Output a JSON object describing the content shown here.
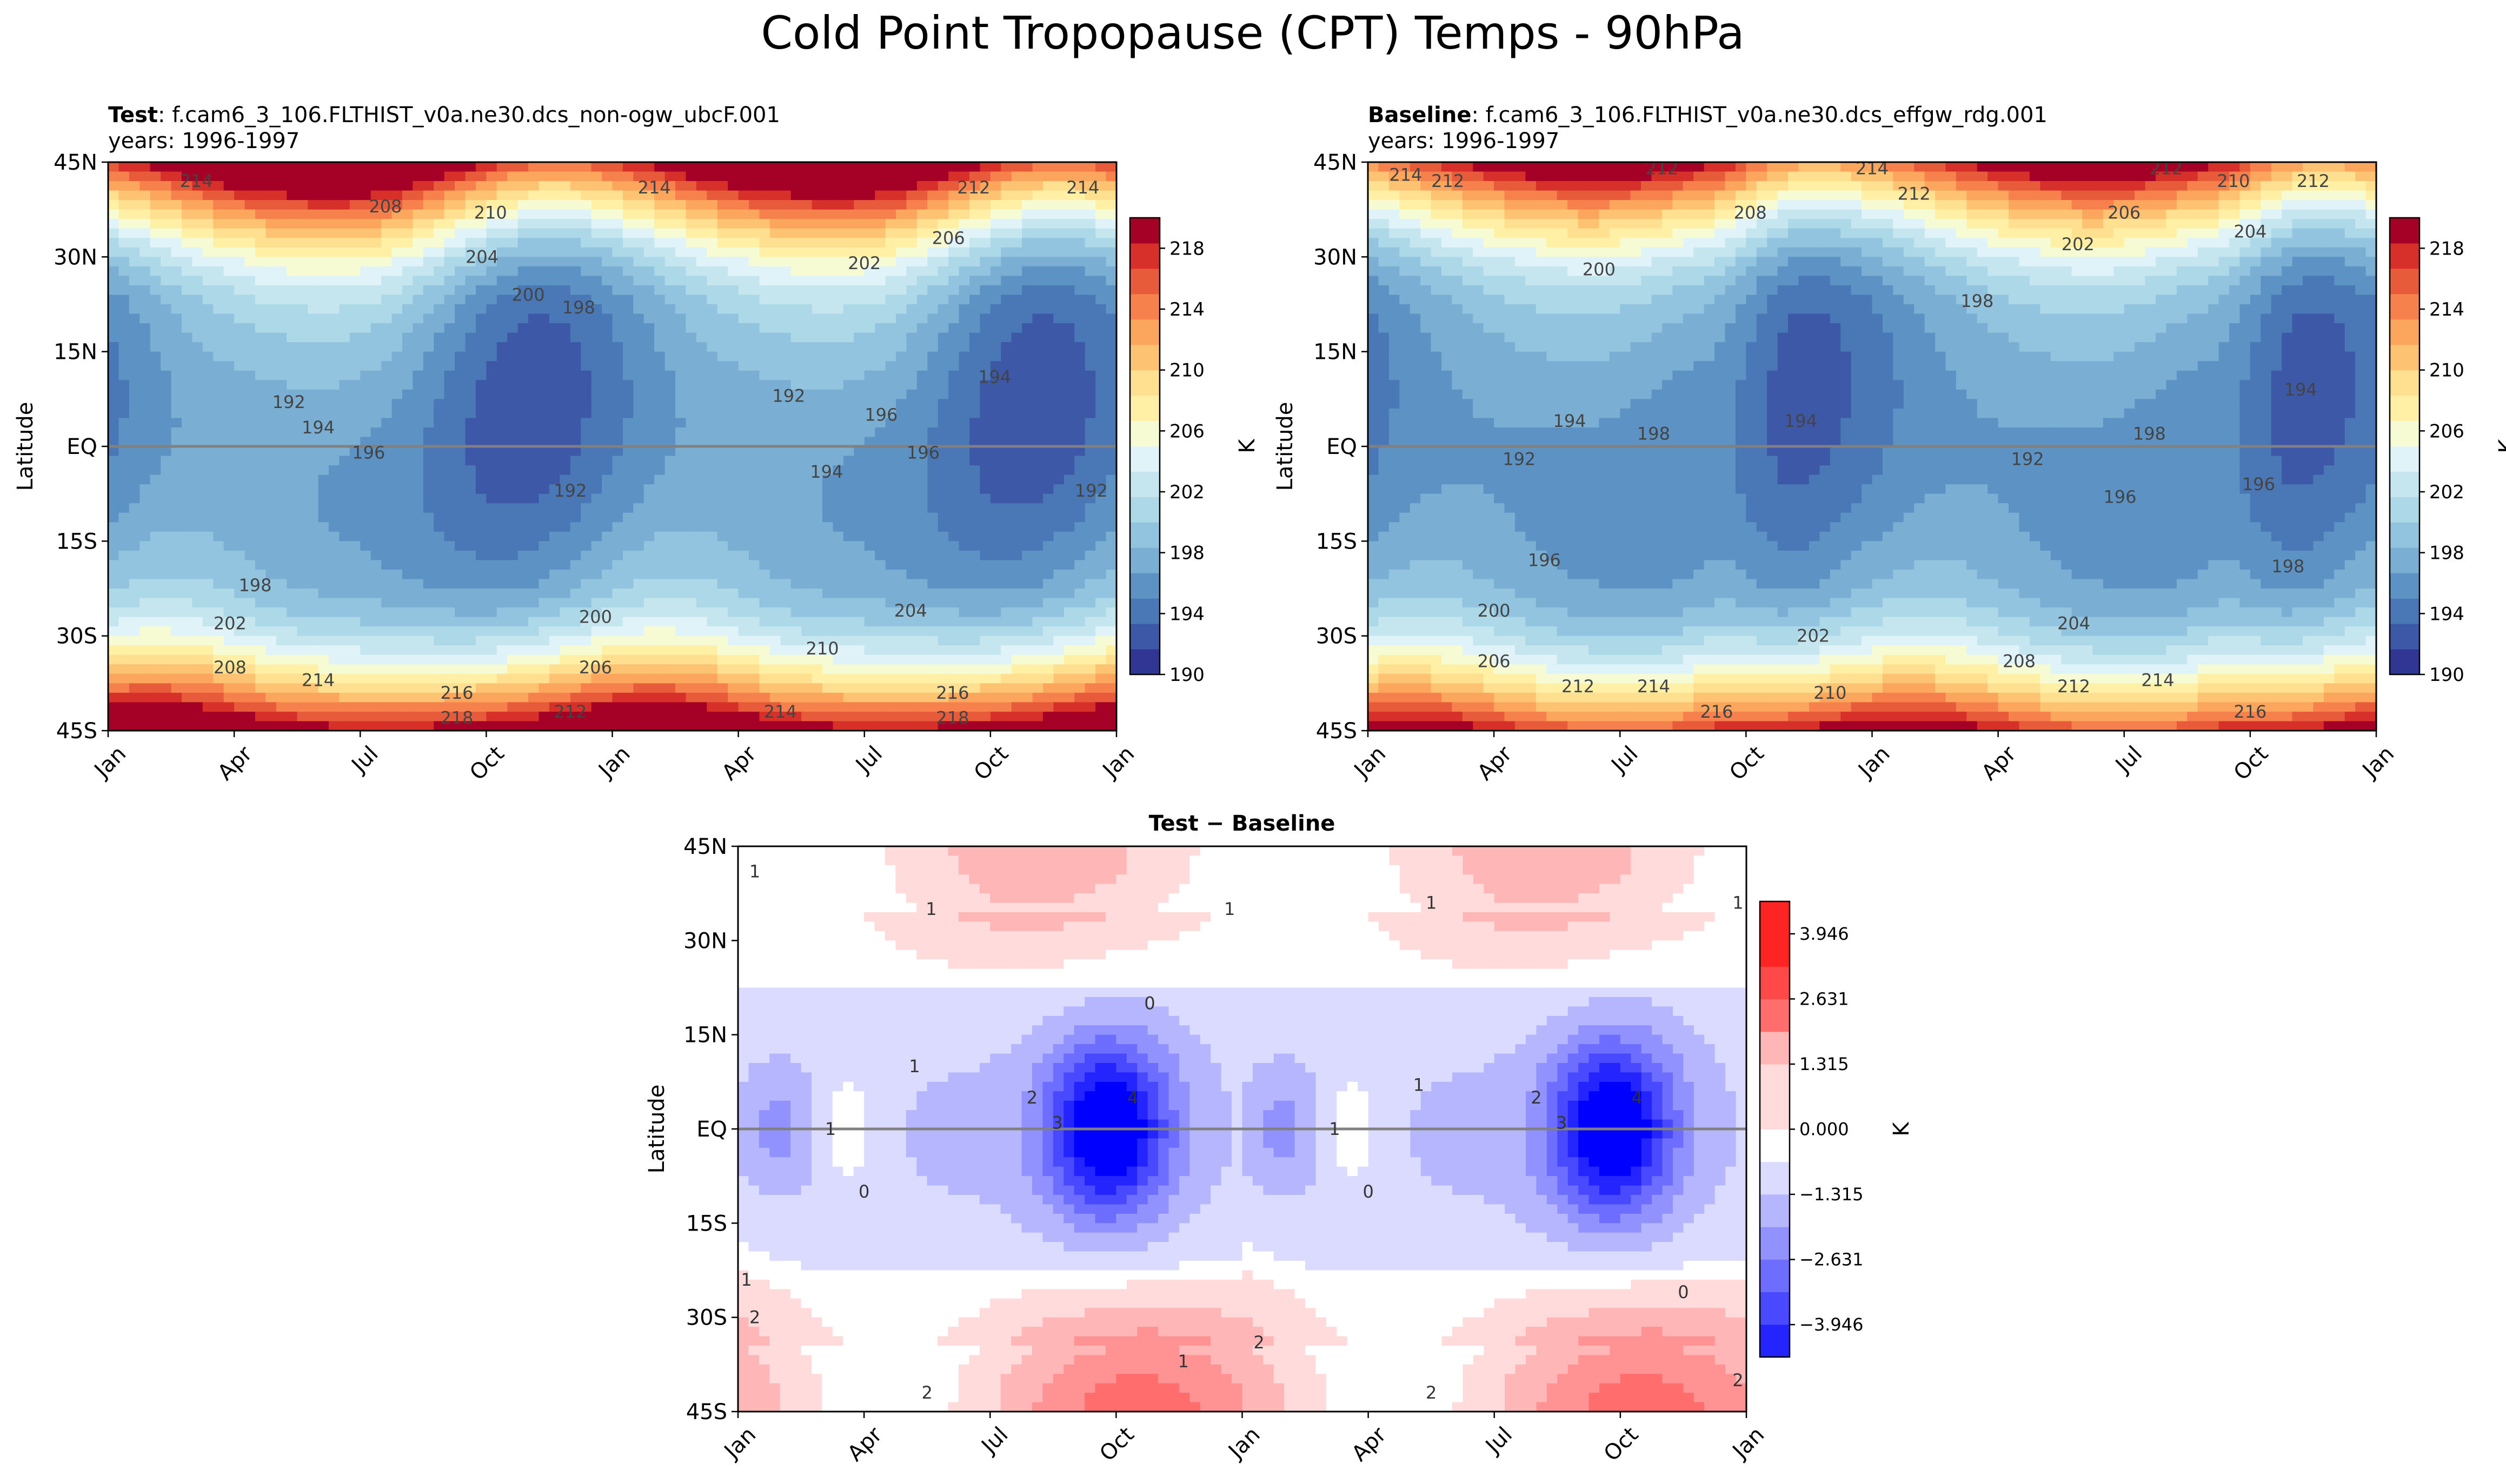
{
  "figure": {
    "title": "Cold Point Tropopause (CPT) Temps - 90hPa"
  },
  "chart_data": [
    {
      "id": "test",
      "type": "heatmap",
      "title_bold": "Test",
      "title_rest": ": f.cam6_3_106.FLTHIST_v0a.ne30.dcs_non-ogw_ubcF.001",
      "subtitle": "years: 1996-1997",
      "ylabel": "Latitude",
      "xlabel": "",
      "x_ticks": [
        "Jan",
        "Apr",
        "Jul",
        "Oct",
        "Jan",
        "Apr",
        "Jul",
        "Oct",
        "Jan"
      ],
      "y_ticks": [
        "45N",
        "30N",
        "15N",
        "EQ",
        "15S",
        "30S",
        "45S"
      ],
      "x_range_months": [
        0,
        24
      ],
      "y_range_lat": [
        -45,
        45
      ],
      "colorbar": {
        "label": "K",
        "ticks": [
          "190",
          "194",
          "198",
          "202",
          "206",
          "210",
          "214",
          "218"
        ],
        "levels": [
          190,
          192,
          194,
          196,
          198,
          200,
          202,
          204,
          206,
          208,
          210,
          212,
          214,
          216,
          218,
          220
        ],
        "colors": [
          "#313695",
          "#3c58a7",
          "#4a77b5",
          "#5d93c4",
          "#7aafd3",
          "#93c4df",
          "#acd8e8",
          "#c6e6ef",
          "#e0f3f8",
          "#f6fbd4",
          "#fff0a6",
          "#fee090",
          "#fdc372",
          "#fca55d",
          "#f6814c",
          "#e85b3a",
          "#d7302a",
          "#a50026"
        ],
        "vmin": 190,
        "vmax": 220
      },
      "contour_labels": [
        {
          "text": "214",
          "m": 2.1,
          "lat": 42
        },
        {
          "text": "214",
          "m": 13.0,
          "lat": 41
        },
        {
          "text": "212",
          "m": 20.6,
          "lat": 41
        },
        {
          "text": "214",
          "m": 23.2,
          "lat": 41
        },
        {
          "text": "208",
          "m": 6.6,
          "lat": 38
        },
        {
          "text": "210",
          "m": 9.1,
          "lat": 37
        },
        {
          "text": "206",
          "m": 20.0,
          "lat": 33
        },
        {
          "text": "204",
          "m": 8.9,
          "lat": 30
        },
        {
          "text": "202",
          "m": 18.0,
          "lat": 29
        },
        {
          "text": "200",
          "m": 10.0,
          "lat": 24
        },
        {
          "text": "198",
          "m": 11.2,
          "lat": 22
        },
        {
          "text": "192",
          "m": 4.3,
          "lat": 7
        },
        {
          "text": "194",
          "m": 5.0,
          "lat": 3
        },
        {
          "text": "196",
          "m": 6.2,
          "lat": -1
        },
        {
          "text": "192",
          "m": 16.2,
          "lat": 8
        },
        {
          "text": "196",
          "m": 18.4,
          "lat": 5
        },
        {
          "text": "194",
          "m": 21.1,
          "lat": 11
        },
        {
          "text": "196",
          "m": 19.4,
          "lat": -1
        },
        {
          "text": "194",
          "m": 17.1,
          "lat": -4
        },
        {
          "text": "192",
          "m": 11.0,
          "lat": -7
        },
        {
          "text": "192",
          "m": 23.4,
          "lat": -7
        },
        {
          "text": "198",
          "m": 3.5,
          "lat": -22
        },
        {
          "text": "202",
          "m": 2.9,
          "lat": -28
        },
        {
          "text": "200",
          "m": 11.6,
          "lat": -27
        },
        {
          "text": "204",
          "m": 19.1,
          "lat": -26
        },
        {
          "text": "208",
          "m": 2.9,
          "lat": -35
        },
        {
          "text": "206",
          "m": 11.6,
          "lat": -35
        },
        {
          "text": "210",
          "m": 17.0,
          "lat": -32
        },
        {
          "text": "214",
          "m": 5.0,
          "lat": -37
        },
        {
          "text": "216",
          "m": 8.3,
          "lat": -39
        },
        {
          "text": "212",
          "m": 11.0,
          "lat": -42
        },
        {
          "text": "214",
          "m": 16.0,
          "lat": -42
        },
        {
          "text": "216",
          "m": 20.1,
          "lat": -39
        },
        {
          "text": "218",
          "m": 8.3,
          "lat": -43
        },
        {
          "text": "218",
          "m": 20.1,
          "lat": -43
        }
      ]
    },
    {
      "id": "baseline",
      "type": "heatmap",
      "title_bold": "Baseline",
      "title_rest": ": f.cam6_3_106.FLTHIST_v0a.ne30.dcs_effgw_rdg.001",
      "subtitle": "years: 1996-1997",
      "ylabel": "Latitude",
      "xlabel": "",
      "x_ticks": [
        "Jan",
        "Apr",
        "Jul",
        "Oct",
        "Jan",
        "Apr",
        "Jul",
        "Oct",
        "Jan"
      ],
      "y_ticks": [
        "45N",
        "30N",
        "15N",
        "EQ",
        "15S",
        "30S",
        "45S"
      ],
      "x_range_months": [
        0,
        24
      ],
      "y_range_lat": [
        -45,
        45
      ],
      "colorbar": {
        "label": "K",
        "ticks": [
          "190",
          "194",
          "198",
          "202",
          "206",
          "210",
          "214",
          "218"
        ],
        "levels": [
          190,
          192,
          194,
          196,
          198,
          200,
          202,
          204,
          206,
          208,
          210,
          212,
          214,
          216,
          218,
          220
        ],
        "colors": [
          "#313695",
          "#3c58a7",
          "#4a77b5",
          "#5d93c4",
          "#7aafd3",
          "#93c4df",
          "#acd8e8",
          "#c6e6ef",
          "#e0f3f8",
          "#f6fbd4",
          "#fff0a6",
          "#fee090",
          "#fdc372",
          "#fca55d",
          "#f6814c",
          "#e85b3a",
          "#d7302a",
          "#a50026"
        ],
        "vmin": 190,
        "vmax": 220
      },
      "contour_labels": [
        {
          "text": "214",
          "m": 0.9,
          "lat": 43
        },
        {
          "text": "212",
          "m": 1.9,
          "lat": 42
        },
        {
          "text": "212",
          "m": 7.0,
          "lat": 44
        },
        {
          "text": "214",
          "m": 12.0,
          "lat": 44
        },
        {
          "text": "212",
          "m": 13.0,
          "lat": 40
        },
        {
          "text": "212",
          "m": 19.0,
          "lat": 44
        },
        {
          "text": "210",
          "m": 20.6,
          "lat": 42
        },
        {
          "text": "212",
          "m": 22.5,
          "lat": 42
        },
        {
          "text": "208",
          "m": 9.1,
          "lat": 37
        },
        {
          "text": "206",
          "m": 18.0,
          "lat": 37
        },
        {
          "text": "202",
          "m": 16.9,
          "lat": 32
        },
        {
          "text": "204",
          "m": 21.0,
          "lat": 34
        },
        {
          "text": "200",
          "m": 5.5,
          "lat": 28
        },
        {
          "text": "198",
          "m": 14.5,
          "lat": 23
        },
        {
          "text": "194",
          "m": 4.8,
          "lat": 4
        },
        {
          "text": "198",
          "m": 6.8,
          "lat": 2
        },
        {
          "text": "194",
          "m": 10.3,
          "lat": 4
        },
        {
          "text": "194",
          "m": 22.2,
          "lat": 9
        },
        {
          "text": "198",
          "m": 18.6,
          "lat": 2
        },
        {
          "text": "192",
          "m": 3.6,
          "lat": -2
        },
        {
          "text": "192",
          "m": 15.7,
          "lat": -2
        },
        {
          "text": "196",
          "m": 17.9,
          "lat": -8
        },
        {
          "text": "196",
          "m": 21.2,
          "lat": -6
        },
        {
          "text": "196",
          "m": 4.2,
          "lat": -18
        },
        {
          "text": "198",
          "m": 21.9,
          "lat": -19
        },
        {
          "text": "200",
          "m": 3.0,
          "lat": -26
        },
        {
          "text": "202",
          "m": 10.6,
          "lat": -30
        },
        {
          "text": "204",
          "m": 16.8,
          "lat": -28
        },
        {
          "text": "206",
          "m": 3.0,
          "lat": -34
        },
        {
          "text": "208",
          "m": 15.5,
          "lat": -34
        },
        {
          "text": "212",
          "m": 5.0,
          "lat": -38
        },
        {
          "text": "214",
          "m": 6.8,
          "lat": -38
        },
        {
          "text": "210",
          "m": 11.0,
          "lat": -39
        },
        {
          "text": "212",
          "m": 16.8,
          "lat": -38
        },
        {
          "text": "214",
          "m": 18.8,
          "lat": -37
        },
        {
          "text": "216",
          "m": 8.3,
          "lat": -42
        },
        {
          "text": "216",
          "m": 21.0,
          "lat": -42
        }
      ]
    },
    {
      "id": "diff",
      "type": "heatmap",
      "title": "Test − Baseline",
      "ylabel": "Latitude",
      "xlabel": "",
      "x_ticks": [
        "Jan",
        "Apr",
        "Jul",
        "Oct",
        "Jan",
        "Apr",
        "Jul",
        "Oct",
        "Jan"
      ],
      "y_ticks": [
        "45N",
        "30N",
        "15N",
        "EQ",
        "15S",
        "30S",
        "45S"
      ],
      "x_range_months": [
        0,
        24
      ],
      "y_range_lat": [
        -45,
        45
      ],
      "colorbar": {
        "label": "K",
        "ticks": [
          "3.946",
          "2.631",
          "1.315",
          "0.000",
          "−1.315",
          "−2.631",
          "−3.946"
        ],
        "tick_values": [
          3.946,
          2.631,
          1.315,
          0,
          -1.315,
          -2.631,
          -3.946
        ],
        "vmin": -4.6,
        "vmax": 4.6,
        "steps": 14
      },
      "contour_labels": [
        {
          "text": "1",
          "m": 0.4,
          "lat": 41
        },
        {
          "text": "1",
          "m": 4.6,
          "lat": 35
        },
        {
          "text": "1",
          "m": 11.7,
          "lat": 35
        },
        {
          "text": "1",
          "m": 16.5,
          "lat": 36
        },
        {
          "text": "1",
          "m": 23.8,
          "lat": 36
        },
        {
          "text": "0",
          "m": 9.8,
          "lat": 20
        },
        {
          "text": "1",
          "m": 4.2,
          "lat": 10
        },
        {
          "text": "2",
          "m": 7.0,
          "lat": 5
        },
        {
          "text": "3",
          "m": 7.6,
          "lat": 1
        },
        {
          "text": "4",
          "m": 9.4,
          "lat": 5
        },
        {
          "text": "1",
          "m": 16.2,
          "lat": 7
        },
        {
          "text": "2",
          "m": 19.0,
          "lat": 5
        },
        {
          "text": "3",
          "m": 19.6,
          "lat": 1
        },
        {
          "text": "4",
          "m": 21.4,
          "lat": 5
        },
        {
          "text": "1",
          "m": 2.2,
          "lat": 0
        },
        {
          "text": "1",
          "m": 14.2,
          "lat": 0
        },
        {
          "text": "0",
          "m": 3.0,
          "lat": -10
        },
        {
          "text": "0",
          "m": 15.0,
          "lat": -10
        },
        {
          "text": "1",
          "m": 0.2,
          "lat": -24
        },
        {
          "text": "2",
          "m": 0.4,
          "lat": -30
        },
        {
          "text": "0",
          "m": 22.5,
          "lat": -26
        },
        {
          "text": "2",
          "m": 12.4,
          "lat": -34
        },
        {
          "text": "1",
          "m": 10.6,
          "lat": -37
        },
        {
          "text": "2",
          "m": 4.5,
          "lat": -42
        },
        {
          "text": "2",
          "m": 16.5,
          "lat": -42
        },
        {
          "text": "2",
          "m": 23.8,
          "lat": -40
        }
      ]
    }
  ]
}
